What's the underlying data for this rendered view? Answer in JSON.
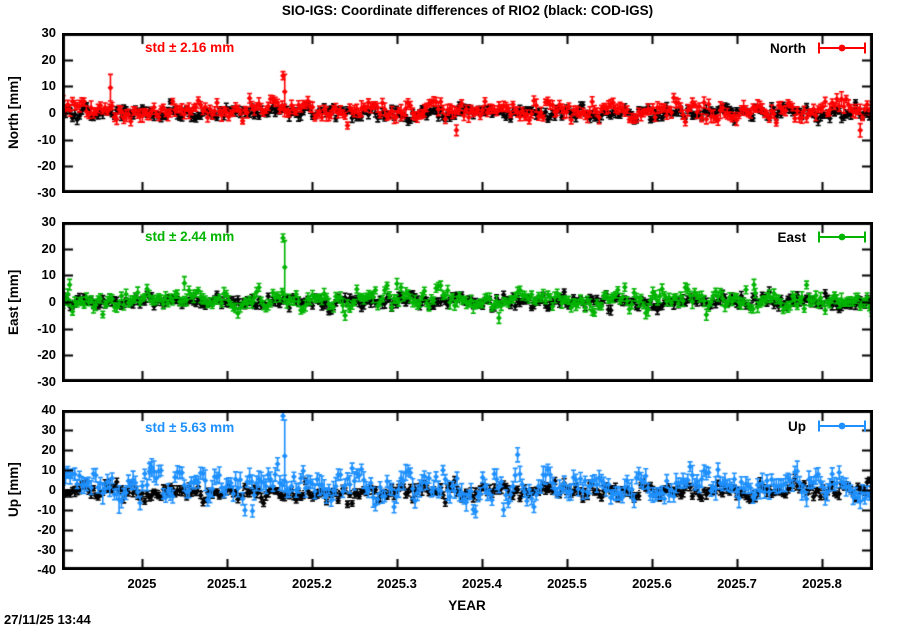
{
  "title": "SIO-IGS: Coordinate differences of RIO2 (black: COD-IGS)",
  "timestamp": "27/11/25 13:44",
  "x_axis": {
    "label": "YEAR",
    "xlim": [
      2024.906,
      2025.86
    ],
    "ticks": [
      2025,
      2025.1,
      2025.2,
      2025.3,
      2025.4,
      2025.5,
      2025.6,
      2025.7,
      2025.8
    ],
    "tick_labels": [
      "2025",
      "2025.1",
      "2025.2",
      "2025.3",
      "2025.4",
      "2025.5",
      "2025.6",
      "2025.7",
      "2025.8"
    ]
  },
  "note": "Daily coordinate-difference scatter with error bars; individual points are below screenshot resolution, so point clouds are synthesized deterministically from the per-series statistics below. Marked outliers/spikes are read directly from the plot.",
  "chart_data": [
    {
      "type": "scatter",
      "id": "north",
      "ylabel": "North [mm]",
      "std_label": "std ± 2.16 mm",
      "std_mm": 2.16,
      "legend_label": "North",
      "color": "#ff0000",
      "ylim": [
        -30,
        30
      ],
      "yticks": [
        30,
        20,
        10,
        0,
        -10,
        -20,
        -30
      ],
      "zero_line": true,
      "series": [
        {
          "name": "COD-IGS",
          "color": "#000000",
          "n": 348,
          "bias": 0.2,
          "sigma": 1.25,
          "ar": 0.25,
          "err_base": 0.9,
          "err_spread": 0.4,
          "seed": 101,
          "outliers": []
        },
        {
          "name": "SIO-IGS",
          "color": "#ff0000",
          "n": 348,
          "bias": 0.8,
          "sigma": 1.9,
          "ar": 0.3,
          "err_base": 1.1,
          "err_spread": 0.6,
          "seed": 202,
          "outliers": [
            {
              "x": 2024.963,
              "y": 9.5,
              "err": 5
            },
            {
              "x": 2025.166,
              "y": 14,
              "err": 1.5
            },
            {
              "x": 2025.168,
              "y": 8,
              "err": 6.5
            },
            {
              "x": 2025.37,
              "y": -6.5,
              "err": 2
            },
            {
              "x": 2025.845,
              "y": -6.5,
              "err": 2.5
            }
          ]
        }
      ]
    },
    {
      "type": "scatter",
      "id": "east",
      "ylabel": "East [mm]",
      "std_label": "std ± 2.44 mm",
      "std_mm": 2.44,
      "legend_label": "East",
      "color": "#00b400",
      "ylim": [
        -30,
        30
      ],
      "yticks": [
        30,
        20,
        10,
        0,
        -10,
        -20,
        -30
      ],
      "zero_line": true,
      "series": [
        {
          "name": "COD-IGS",
          "color": "#000000",
          "n": 348,
          "bias": 0.1,
          "sigma": 1.25,
          "ar": 0.25,
          "err_base": 0.9,
          "err_spread": 0.4,
          "seed": 103,
          "outliers": []
        },
        {
          "name": "SIO-IGS",
          "color": "#00b400",
          "n": 348,
          "bias": 0.7,
          "sigma": 2.0,
          "ar": 0.3,
          "err_base": 1.1,
          "err_spread": 0.6,
          "seed": 204,
          "outliers": [
            {
              "x": 2024.915,
              "y": 6.5,
              "err": 2
            },
            {
              "x": 2025.05,
              "y": 7,
              "err": 2.5
            },
            {
              "x": 2025.166,
              "y": 24,
              "err": 1.5
            },
            {
              "x": 2025.168,
              "y": 13,
              "err": 10
            },
            {
              "x": 2025.3,
              "y": 6.8,
              "err": 2
            },
            {
              "x": 2025.42,
              "y": -6,
              "err": 2
            },
            {
              "x": 2025.72,
              "y": 6.5,
              "err": 2
            }
          ]
        }
      ]
    },
    {
      "type": "scatter",
      "id": "up",
      "ylabel": "Up [mm]",
      "std_label": "std ± 5.63 mm",
      "std_mm": 5.63,
      "legend_label": "Up",
      "color": "#1e90ff",
      "ylim": [
        -40,
        40
      ],
      "yticks": [
        40,
        30,
        20,
        10,
        0,
        -10,
        -20,
        -30,
        -40
      ],
      "zero_line": true,
      "series": [
        {
          "name": "COD-IGS",
          "color": "#000000",
          "n": 348,
          "bias": -0.8,
          "sigma": 2.1,
          "ar": 0.3,
          "err_base": 1.2,
          "err_spread": 0.6,
          "seed": 105,
          "outliers": []
        },
        {
          "name": "SIO-IGS",
          "color": "#1e90ff",
          "n": 348,
          "bias": 2.0,
          "sigma": 4.3,
          "ar": 0.5,
          "err_base": 2.2,
          "err_spread": 1.2,
          "seed": 206,
          "outliers": [
            {
              "x": 2025.01,
              "y": 11,
              "err": 3
            },
            {
              "x": 2025.13,
              "y": -10.5,
              "err": 3
            },
            {
              "x": 2025.166,
              "y": 37,
              "err": 2
            },
            {
              "x": 2025.168,
              "y": 17,
              "err": 18
            }
          ]
        }
      ]
    }
  ]
}
